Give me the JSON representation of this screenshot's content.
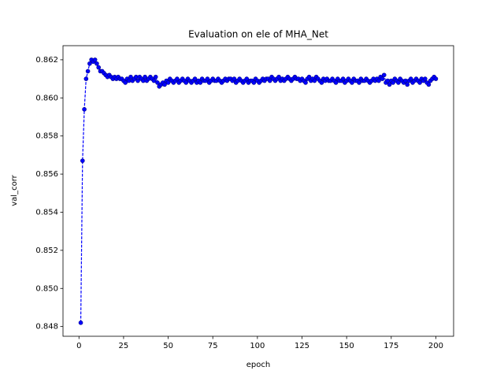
{
  "chart_data": {
    "type": "line",
    "title": "Evaluation on ele of MHA_Net",
    "x_label": "epoch",
    "y_label": "val_corr",
    "x": [
      1,
      2,
      3,
      4,
      5,
      6,
      7,
      8,
      9,
      10,
      11,
      12,
      13,
      14,
      15,
      16,
      17,
      18,
      19,
      20,
      21,
      22,
      23,
      24,
      25,
      26,
      27,
      28,
      29,
      30,
      31,
      32,
      33,
      34,
      35,
      36,
      37,
      38,
      39,
      40,
      41,
      42,
      43,
      44,
      45,
      46,
      47,
      48,
      49,
      50,
      51,
      52,
      53,
      54,
      55,
      56,
      57,
      58,
      59,
      60,
      61,
      62,
      63,
      64,
      65,
      66,
      67,
      68,
      69,
      70,
      71,
      72,
      73,
      74,
      75,
      76,
      77,
      78,
      79,
      80,
      81,
      82,
      83,
      84,
      85,
      86,
      87,
      88,
      89,
      90,
      91,
      92,
      93,
      94,
      95,
      96,
      97,
      98,
      99,
      100,
      101,
      102,
      103,
      104,
      105,
      106,
      107,
      108,
      109,
      110,
      111,
      112,
      113,
      114,
      115,
      116,
      117,
      118,
      119,
      120,
      121,
      122,
      123,
      124,
      125,
      126,
      127,
      128,
      129,
      130,
      131,
      132,
      133,
      134,
      135,
      136,
      137,
      138,
      139,
      140,
      141,
      142,
      143,
      144,
      145,
      146,
      147,
      148,
      149,
      150,
      151,
      152,
      153,
      154,
      155,
      156,
      157,
      158,
      159,
      160,
      161,
      162,
      163,
      164,
      165,
      166,
      167,
      168,
      169,
      170,
      171,
      172,
      173,
      174,
      175,
      176,
      177,
      178,
      179,
      180,
      181,
      182,
      183,
      184,
      185,
      186,
      187,
      188,
      189,
      190,
      191,
      192,
      193,
      194,
      195,
      196,
      197,
      198,
      199,
      200
    ],
    "series": [
      {
        "color": "#0000ff",
        "line_style": "dashed",
        "values": [
          0.8482,
          0.8567,
          0.8594,
          0.861,
          0.8614,
          0.8618,
          0.862,
          0.8619,
          0.862,
          0.8618,
          0.8616,
          0.8614,
          0.8614,
          0.8613,
          0.8612,
          0.8611,
          0.8612,
          0.8611,
          0.861,
          0.8611,
          0.861,
          0.8611,
          0.861,
          0.861,
          0.8609,
          0.8608,
          0.861,
          0.8609,
          0.8611,
          0.8609,
          0.861,
          0.8611,
          0.8609,
          0.8611,
          0.861,
          0.8609,
          0.8611,
          0.8609,
          0.861,
          0.8611,
          0.861,
          0.8609,
          0.8611,
          0.8608,
          0.8606,
          0.8607,
          0.8608,
          0.8607,
          0.8609,
          0.8608,
          0.861,
          0.8609,
          0.8608,
          0.8609,
          0.861,
          0.8608,
          0.8609,
          0.861,
          0.8609,
          0.8608,
          0.861,
          0.8609,
          0.8608,
          0.8609,
          0.861,
          0.8608,
          0.8609,
          0.8608,
          0.861,
          0.8609,
          0.8609,
          0.861,
          0.8608,
          0.8609,
          0.861,
          0.8609,
          0.8609,
          0.861,
          0.8609,
          0.8608,
          0.8609,
          0.861,
          0.8609,
          0.861,
          0.861,
          0.8609,
          0.861,
          0.8608,
          0.8609,
          0.861,
          0.8609,
          0.8608,
          0.8609,
          0.861,
          0.8608,
          0.8609,
          0.8609,
          0.8608,
          0.861,
          0.8609,
          0.8608,
          0.8609,
          0.861,
          0.8609,
          0.861,
          0.861,
          0.8609,
          0.8611,
          0.861,
          0.8609,
          0.861,
          0.8611,
          0.8609,
          0.861,
          0.8609,
          0.861,
          0.8611,
          0.861,
          0.8609,
          0.861,
          0.8611,
          0.861,
          0.861,
          0.8609,
          0.861,
          0.8609,
          0.8608,
          0.861,
          0.8611,
          0.8609,
          0.861,
          0.8609,
          0.8611,
          0.861,
          0.8609,
          0.8608,
          0.861,
          0.8609,
          0.861,
          0.8609,
          0.8609,
          0.861,
          0.8609,
          0.8608,
          0.861,
          0.8609,
          0.8609,
          0.861,
          0.8608,
          0.8609,
          0.861,
          0.8609,
          0.8608,
          0.861,
          0.8609,
          0.8609,
          0.8608,
          0.861,
          0.8609,
          0.8609,
          0.861,
          0.8609,
          0.8608,
          0.8609,
          0.861,
          0.8609,
          0.861,
          0.8609,
          0.8611,
          0.861,
          0.8612,
          0.8608,
          0.8609,
          0.8607,
          0.8609,
          0.8608,
          0.861,
          0.8609,
          0.8608,
          0.861,
          0.8609,
          0.8608,
          0.8609,
          0.8607,
          0.8609,
          0.861,
          0.8608,
          0.8609,
          0.861,
          0.8609,
          0.8608,
          0.861,
          0.8609,
          0.861,
          0.8608,
          0.8607,
          0.8609,
          0.861,
          0.8611,
          0.861
        ]
      }
    ],
    "xlim": [
      -8.95,
      209.95
    ],
    "ylim": [
      0.84749,
      0.86274
    ],
    "xticks": [
      0,
      25,
      50,
      75,
      100,
      125,
      150,
      175,
      200
    ],
    "yticks": [
      0.848,
      {
        "value": 0.85,
        "label": "0.850"
      },
      0.852,
      0.854,
      0.856,
      0.858,
      {
        "value": 0.86,
        "label": "0.860"
      },
      0.862
    ]
  }
}
